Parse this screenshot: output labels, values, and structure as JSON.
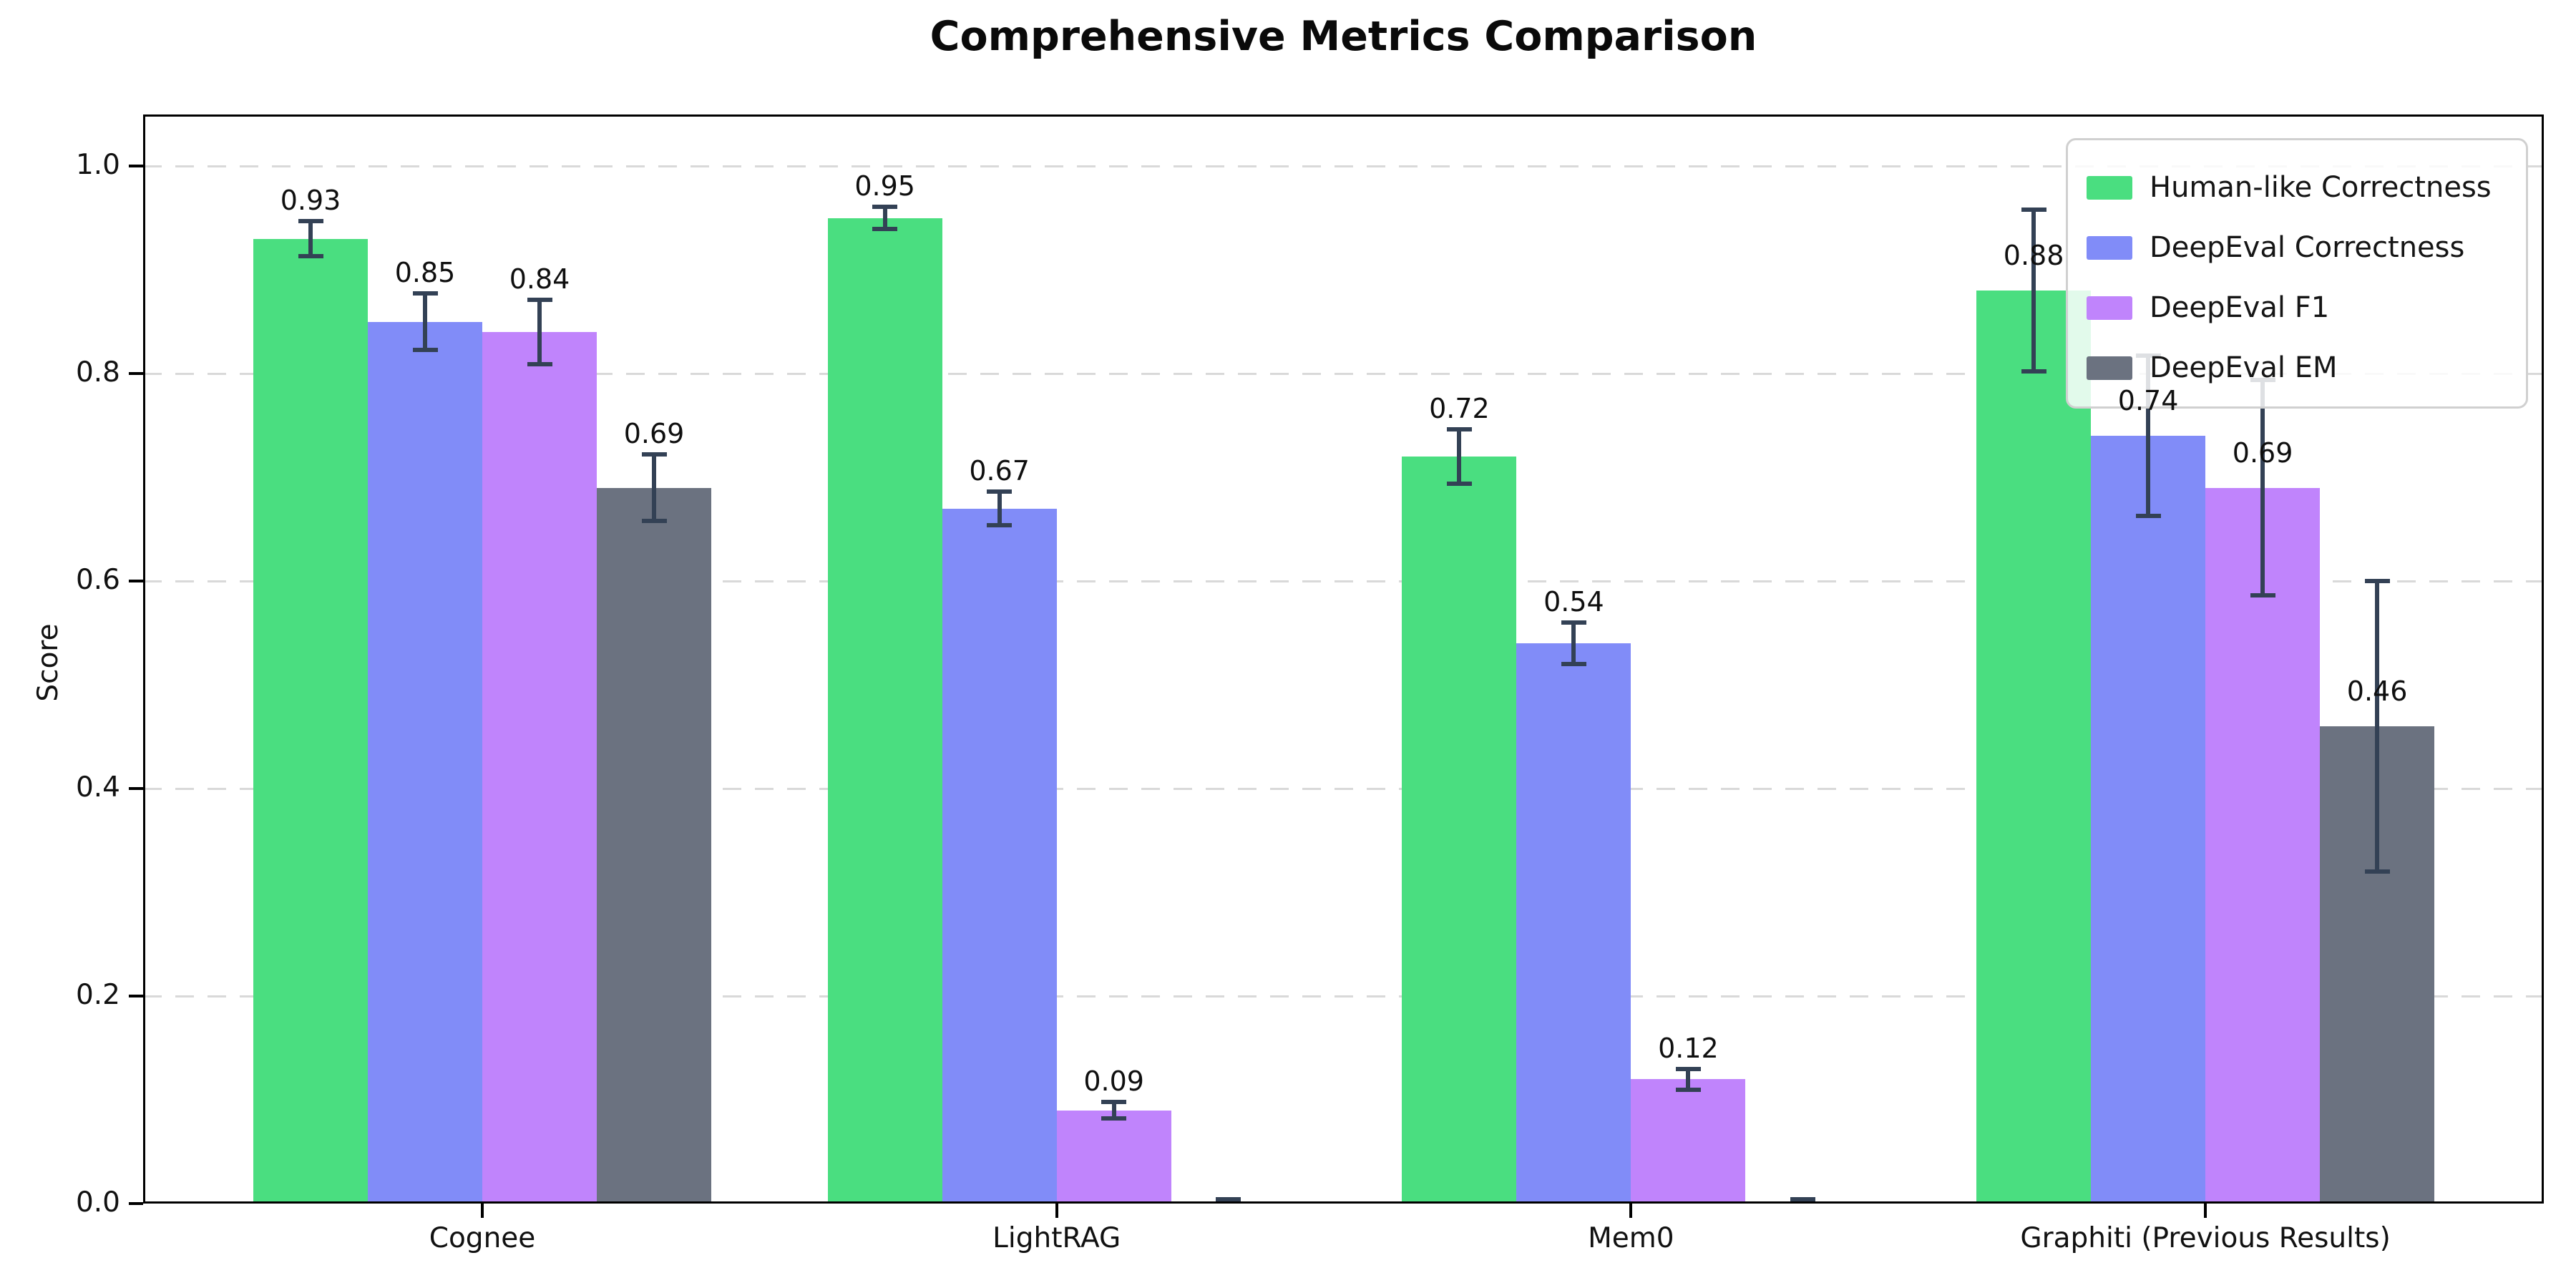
{
  "page": {
    "background": "#ffffff"
  },
  "chart_data": {
    "type": "bar",
    "title": "Comprehensive Metrics Comparison",
    "xlabel": "",
    "ylabel": "Score",
    "categories": [
      "Cognee",
      "LightRAG",
      "Mem0",
      "Graphiti (Previous Results)"
    ],
    "series": [
      {
        "name": "Human-like Correctness",
        "color": "#4ade80",
        "values": [
          0.93,
          0.95,
          0.72,
          0.88
        ],
        "errors": [
          0.017,
          0.011,
          0.026,
          0.078
        ],
        "value_labels": [
          "0.93",
          "0.95",
          "0.72",
          "0.88"
        ]
      },
      {
        "name": "DeepEval Correctness",
        "color": "#818cf8",
        "values": [
          0.85,
          0.67,
          0.54,
          0.74
        ],
        "errors": [
          0.027,
          0.016,
          0.02,
          0.077
        ],
        "value_labels": [
          "0.85",
          "0.67",
          "0.54",
          "0.74"
        ]
      },
      {
        "name": "DeepEval F1",
        "color": "#c084fc",
        "values": [
          0.84,
          0.09,
          0.12,
          0.69
        ],
        "errors": [
          0.031,
          0.008,
          0.01,
          0.104
        ],
        "value_labels": [
          "0.84",
          "0.09",
          "0.12",
          "0.69"
        ]
      },
      {
        "name": "DeepEval EM",
        "color": "#6b7280",
        "values": [
          0.69,
          0.0,
          0.0,
          0.46
        ],
        "errors": [
          0.032,
          0.004,
          0.004,
          0.14
        ],
        "value_labels": [
          "0.69",
          "",
          "",
          "0.46"
        ]
      }
    ],
    "ylim": [
      0,
      1.05
    ],
    "yticks": [
      "0.0",
      "0.2",
      "0.4",
      "0.6",
      "0.8",
      "1.0"
    ],
    "grid": "horizontal-dashed",
    "legend_position": "upper right",
    "error_bars": true,
    "colors": {
      "error_bar": "#334155",
      "grid": "#d9d9d9",
      "axis": "#000000",
      "legend_border": "#d0d0d0",
      "text": "#111111"
    }
  }
}
